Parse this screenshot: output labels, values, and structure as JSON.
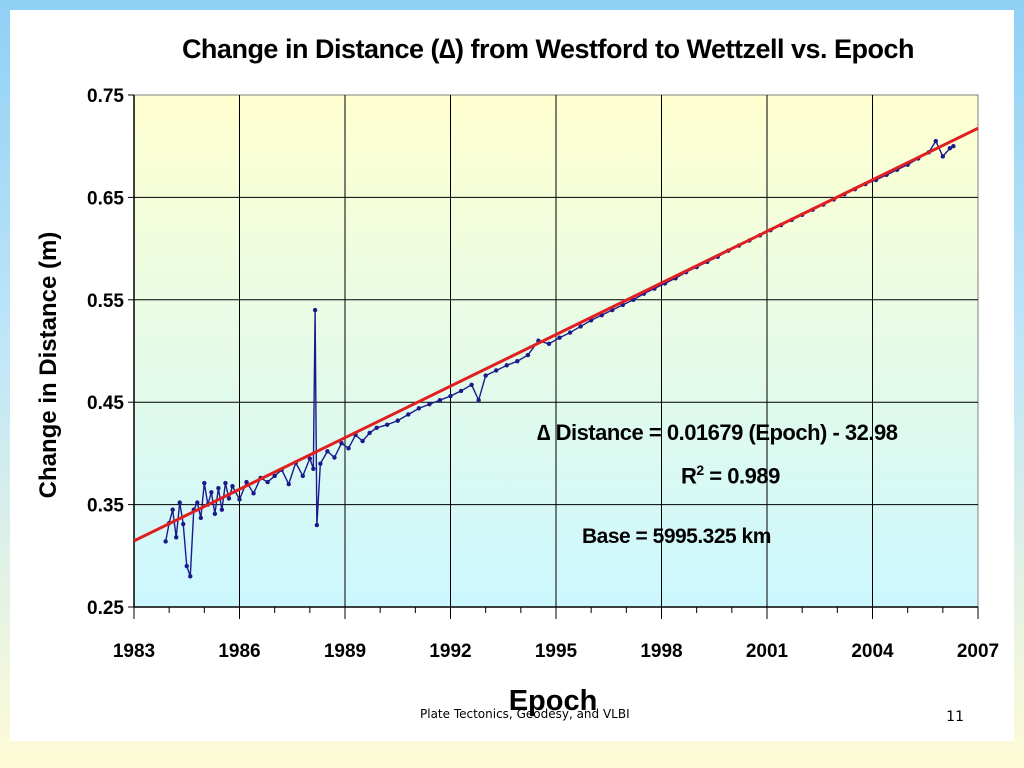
{
  "chart_data": {
    "type": "scatter",
    "title": "Change in Distance (∆) from Westford to Wettzell vs. Epoch",
    "xlabel": "Epoch",
    "ylabel": "Change in Distance (m)",
    "xlim": [
      1983,
      2007
    ],
    "ylim": [
      0.25,
      0.75
    ],
    "x_ticks": [
      "1983",
      "1986",
      "1989",
      "1992",
      "1995",
      "1998",
      "2001",
      "2004",
      "2007"
    ],
    "y_ticks": [
      "0.25",
      "0.35",
      "0.45",
      "0.55",
      "0.65",
      "0.75"
    ],
    "grid": true,
    "series": [
      {
        "name": "",
        "color": "#1a1a8c",
        "points": [
          [
            1983.9,
            0.314
          ],
          [
            1984.0,
            0.332
          ],
          [
            1984.1,
            0.345
          ],
          [
            1984.2,
            0.318
          ],
          [
            1984.3,
            0.352
          ],
          [
            1984.4,
            0.331
          ],
          [
            1984.5,
            0.29
          ],
          [
            1984.6,
            0.28
          ],
          [
            1984.7,
            0.345
          ],
          [
            1984.8,
            0.352
          ],
          [
            1984.9,
            0.337
          ],
          [
            1985.0,
            0.371
          ],
          [
            1985.1,
            0.35
          ],
          [
            1985.2,
            0.362
          ],
          [
            1985.3,
            0.341
          ],
          [
            1985.4,
            0.366
          ],
          [
            1985.5,
            0.345
          ],
          [
            1985.6,
            0.371
          ],
          [
            1985.7,
            0.356
          ],
          [
            1985.8,
            0.368
          ],
          [
            1986.0,
            0.355
          ],
          [
            1986.2,
            0.372
          ],
          [
            1986.4,
            0.361
          ],
          [
            1986.6,
            0.376
          ],
          [
            1986.8,
            0.372
          ],
          [
            1987.0,
            0.378
          ],
          [
            1987.2,
            0.384
          ],
          [
            1987.4,
            0.37
          ],
          [
            1987.6,
            0.391
          ],
          [
            1987.8,
            0.378
          ],
          [
            1988.0,
            0.395
          ],
          [
            1988.1,
            0.385
          ],
          [
            1988.15,
            0.54
          ],
          [
            1988.2,
            0.33
          ],
          [
            1988.3,
            0.39
          ],
          [
            1988.5,
            0.402
          ],
          [
            1988.7,
            0.396
          ],
          [
            1988.9,
            0.41
          ],
          [
            1989.1,
            0.405
          ],
          [
            1989.3,
            0.418
          ],
          [
            1989.5,
            0.412
          ],
          [
            1989.7,
            0.42
          ],
          [
            1989.9,
            0.425
          ],
          [
            1990.2,
            0.428
          ],
          [
            1990.5,
            0.432
          ],
          [
            1990.8,
            0.438
          ],
          [
            1991.1,
            0.444
          ],
          [
            1991.4,
            0.448
          ],
          [
            1991.7,
            0.452
          ],
          [
            1992.0,
            0.456
          ],
          [
            1992.3,
            0.461
          ],
          [
            1992.6,
            0.467
          ],
          [
            1992.8,
            0.452
          ],
          [
            1993.0,
            0.476
          ],
          [
            1993.3,
            0.481
          ],
          [
            1993.6,
            0.486
          ],
          [
            1993.9,
            0.49
          ],
          [
            1994.2,
            0.496
          ],
          [
            1994.5,
            0.51
          ],
          [
            1994.8,
            0.507
          ],
          [
            1995.1,
            0.513
          ],
          [
            1995.4,
            0.518
          ],
          [
            1995.7,
            0.524
          ],
          [
            1996.0,
            0.53
          ],
          [
            1996.3,
            0.535
          ],
          [
            1996.6,
            0.54
          ],
          [
            1996.9,
            0.545
          ],
          [
            1997.2,
            0.55
          ],
          [
            1997.5,
            0.556
          ],
          [
            1997.8,
            0.561
          ],
          [
            1998.1,
            0.566
          ],
          [
            1998.4,
            0.571
          ],
          [
            1998.7,
            0.577
          ],
          [
            1999.0,
            0.582
          ],
          [
            1999.3,
            0.587
          ],
          [
            1999.6,
            0.592
          ],
          [
            1999.9,
            0.598
          ],
          [
            2000.2,
            0.603
          ],
          [
            2000.5,
            0.608
          ],
          [
            2000.8,
            0.613
          ],
          [
            2001.1,
            0.618
          ],
          [
            2001.4,
            0.623
          ],
          [
            2001.7,
            0.628
          ],
          [
            2002.0,
            0.633
          ],
          [
            2002.3,
            0.638
          ],
          [
            2002.6,
            0.643
          ],
          [
            2002.9,
            0.648
          ],
          [
            2003.2,
            0.653
          ],
          [
            2003.5,
            0.658
          ],
          [
            2003.8,
            0.663
          ],
          [
            2004.1,
            0.667
          ],
          [
            2004.4,
            0.672
          ],
          [
            2004.7,
            0.677
          ],
          [
            2005.0,
            0.682
          ],
          [
            2005.3,
            0.688
          ],
          [
            2005.6,
            0.694
          ],
          [
            2005.8,
            0.705
          ],
          [
            2006.0,
            0.69
          ],
          [
            2006.2,
            0.698
          ],
          [
            2006.3,
            0.7
          ]
        ]
      }
    ],
    "fit_line": {
      "slope": 0.01679,
      "intercept": -32.98,
      "color": "#e02020"
    },
    "annotations": {
      "equation": "∆ Distance = 0.01679 (Epoch) - 32.98",
      "r2_prefix": "R",
      "r2_sup": "2",
      "r2_suffix": " = 0.989",
      "base": "Base = 5995.325 km"
    },
    "plot_bg_top": "#ffffd0",
    "plot_bg_bottom": "#ccf7ff"
  },
  "footer": {
    "caption": "Plate Tectonics, Geodesy, and VLBI",
    "page_number": "11"
  }
}
